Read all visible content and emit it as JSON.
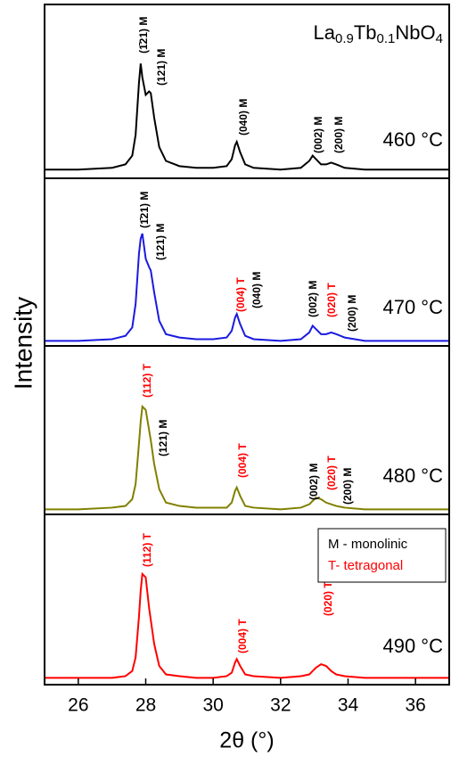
{
  "chart_data": [
    {
      "type": "line",
      "title": [
        "La",
        "0.9",
        "Tb",
        "0.1",
        "NbO",
        "4"
      ],
      "label": "460 °C",
      "ylabel": "Intensity",
      "color": "#000000",
      "xlim": [
        25,
        37
      ],
      "ylim": [
        0,
        100
      ],
      "x": [
        25,
        26,
        27,
        27.4,
        27.6,
        27.7,
        27.8,
        27.85,
        27.9,
        28.0,
        28.1,
        28.15,
        28.25,
        28.4,
        28.6,
        29,
        29.5,
        30,
        30.4,
        30.55,
        30.65,
        30.7,
        30.8,
        30.95,
        31.2,
        32,
        32.6,
        32.85,
        32.95,
        33.05,
        33.2,
        33.35,
        33.5,
        33.65,
        33.9,
        34.5,
        35.5,
        37
      ],
      "values": [
        5,
        5,
        6,
        8,
        13,
        25,
        55,
        66,
        58,
        48,
        50,
        49,
        35,
        18,
        10,
        7,
        6,
        6,
        7,
        11,
        19,
        21,
        15,
        8,
        6,
        5,
        6,
        10,
        13,
        11,
        8,
        8,
        9,
        8,
        6,
        5,
        5,
        5
      ],
      "annotations": [
        {
          "text": "(1̄21) M",
          "color": "#000000"
        },
        {
          "text": "(121) M",
          "color": "#000000"
        },
        {
          "text": "(040) M",
          "color": "#000000"
        },
        {
          "text": "(002) M",
          "color": "#000000"
        },
        {
          "text": "(200) M",
          "color": "#000000"
        }
      ]
    },
    {
      "type": "line",
      "label": "470 °C",
      "color": "#1a1ae0",
      "xlim": [
        25,
        37
      ],
      "ylim": [
        0,
        100
      ],
      "x": [
        25,
        26,
        27,
        27.4,
        27.6,
        27.7,
        27.8,
        27.85,
        27.9,
        28.0,
        28.1,
        28.15,
        28.25,
        28.4,
        28.6,
        29,
        29.5,
        30,
        30.4,
        30.55,
        30.65,
        30.7,
        30.8,
        30.95,
        31.2,
        32,
        32.6,
        32.85,
        32.95,
        33.05,
        33.2,
        33.35,
        33.5,
        33.65,
        33.9,
        34.5,
        35.5,
        37
      ],
      "values": [
        3,
        3,
        4,
        6,
        11,
        25,
        55,
        64,
        67,
        52,
        47,
        45,
        32,
        15,
        7,
        5,
        4,
        4,
        5,
        9,
        17,
        19,
        13,
        6,
        4,
        3,
        4,
        8,
        12,
        10,
        7,
        7,
        8,
        7,
        5,
        3,
        3,
        3
      ],
      "annotations": [
        {
          "text": "(1̄21) M",
          "color": "#000000"
        },
        {
          "text": "(121) M",
          "color": "#000000"
        },
        {
          "text": "(004) T",
          "color": "#ff0000"
        },
        {
          "text": "(040) M",
          "color": "#000000"
        },
        {
          "text": "(002) M",
          "color": "#000000"
        },
        {
          "text": "(020) T",
          "color": "#ff0000"
        },
        {
          "text": "(200) M",
          "color": "#000000"
        }
      ]
    },
    {
      "type": "line",
      "label": "480 °C",
      "color": "#808000",
      "xlim": [
        25,
        37
      ],
      "ylim": [
        0,
        100
      ],
      "x": [
        25,
        26,
        27,
        27.4,
        27.6,
        27.7,
        27.8,
        27.85,
        27.9,
        28.0,
        28.1,
        28.15,
        28.25,
        28.4,
        28.6,
        29,
        29.5,
        30,
        30.4,
        30.55,
        30.65,
        30.7,
        30.8,
        30.95,
        31.2,
        32,
        32.6,
        32.85,
        32.95,
        33.05,
        33.2,
        33.35,
        33.5,
        33.65,
        33.9,
        34.5,
        35.5,
        37
      ],
      "values": [
        3,
        3,
        4,
        5,
        9,
        18,
        42,
        55,
        64,
        62,
        50,
        44,
        30,
        15,
        7,
        5,
        4,
        4,
        4,
        7,
        14,
        16,
        11,
        5,
        4,
        3,
        4,
        6,
        8,
        10,
        9,
        7,
        6,
        5,
        4,
        3,
        3,
        3
      ],
      "annotations": [
        {
          "text": "(112) T",
          "color": "#ff0000"
        },
        {
          "text": "(121) M",
          "color": "#000000"
        },
        {
          "text": "(004) T",
          "color": "#ff0000"
        },
        {
          "text": "(002) M",
          "color": "#000000"
        },
        {
          "text": "(020) T",
          "color": "#ff0000"
        },
        {
          "text": "(200) M",
          "color": "#000000"
        }
      ]
    },
    {
      "type": "line",
      "label": "490 °C",
      "color": "#ff0000",
      "xlabel": "2θ (°)",
      "xlim": [
        25,
        37
      ],
      "ylim": [
        0,
        100
      ],
      "xticks": [
        26,
        28,
        30,
        32,
        34,
        36
      ],
      "x": [
        25,
        26,
        27,
        27.4,
        27.6,
        27.7,
        27.8,
        27.85,
        27.9,
        28.0,
        28.1,
        28.15,
        28.25,
        28.4,
        28.6,
        29,
        29.5,
        30,
        30.4,
        30.55,
        30.65,
        30.7,
        30.8,
        30.95,
        31.2,
        32,
        32.6,
        32.85,
        32.95,
        33.05,
        33.2,
        33.35,
        33.5,
        33.65,
        33.9,
        34.5,
        35.5,
        37
      ],
      "values": [
        4,
        4,
        4,
        5,
        8,
        16,
        40,
        55,
        65,
        63,
        45,
        38,
        24,
        11,
        6,
        5,
        4,
        4,
        5,
        7,
        13,
        15,
        11,
        6,
        5,
        4,
        5,
        6,
        8,
        10,
        12,
        11,
        8,
        6,
        5,
        4,
        4,
        4
      ],
      "annotations": [
        {
          "text": "(112) T",
          "color": "#ff0000"
        },
        {
          "text": "(004) T",
          "color": "#ff0000"
        },
        {
          "text": "(020) T",
          "color": "#ff0000"
        }
      ],
      "notes": [
        {
          "text": "M - monolinic",
          "color": "#000000"
        },
        {
          "text": "T- tetragonal",
          "color": "#ff0000"
        }
      ]
    }
  ]
}
